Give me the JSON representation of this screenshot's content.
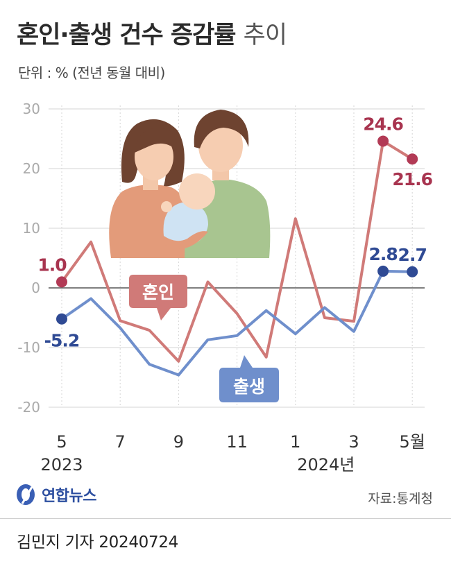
{
  "title_main": "혼인·출생 건수 증감률",
  "title_sub": "추이",
  "unit": "단위 : % (전년 동월 대비)",
  "source": "자료:통계청",
  "logo": "연합뉴스",
  "reporter": "김민지 기자  20240724",
  "chart_data": {
    "type": "line",
    "x": [
      "2023-05",
      "2023-06",
      "2023-07",
      "2023-08",
      "2023-09",
      "2023-10",
      "2023-11",
      "2023-12",
      "2024-01",
      "2024-02",
      "2024-03",
      "2024-04",
      "2024-05"
    ],
    "x_tick_labels": [
      {
        "index": 0,
        "label": "5",
        "sub": "2023"
      },
      {
        "index": 2,
        "label": "7",
        "sub": ""
      },
      {
        "index": 4,
        "label": "9",
        "sub": ""
      },
      {
        "index": 6,
        "label": "11",
        "sub": ""
      },
      {
        "index": 8,
        "label": "1",
        "sub": "2024년"
      },
      {
        "index": 10,
        "label": "3",
        "sub": ""
      },
      {
        "index": 12,
        "label": "5월",
        "sub": ""
      }
    ],
    "ylim": [
      -20,
      30
    ],
    "yticks": [
      -20,
      -10,
      0,
      10,
      20,
      30
    ],
    "grid": true,
    "series": [
      {
        "name": "혼인",
        "color": "#d07a78",
        "marker_color": "#b23a55",
        "label_color": "#a8344f",
        "values": [
          1.0,
          7.7,
          -5.5,
          -7.1,
          -12.3,
          1.0,
          -4.3,
          -11.6,
          11.6,
          -5.0,
          -5.6,
          24.6,
          21.6
        ],
        "labels": [
          {
            "index": 0,
            "text": "1.0"
          },
          {
            "index": 11,
            "text": "24.6"
          },
          {
            "index": 12,
            "text": "21.6"
          }
        ],
        "markers": [
          0,
          11,
          12
        ]
      },
      {
        "name": "출생",
        "color": "#6f8fcc",
        "marker_color": "#2f4a94",
        "label_color": "#2f4a94",
        "values": [
          -5.2,
          -1.8,
          -6.7,
          -12.8,
          -14.6,
          -8.7,
          -8.0,
          -3.8,
          -7.7,
          -3.3,
          -7.3,
          2.8,
          2.7
        ],
        "labels": [
          {
            "index": 0,
            "text": "-5.2"
          },
          {
            "index": 11,
            "text": "2.8"
          },
          {
            "index": 12,
            "text": "2.7"
          }
        ],
        "markers": [
          0,
          11,
          12
        ]
      }
    ]
  }
}
